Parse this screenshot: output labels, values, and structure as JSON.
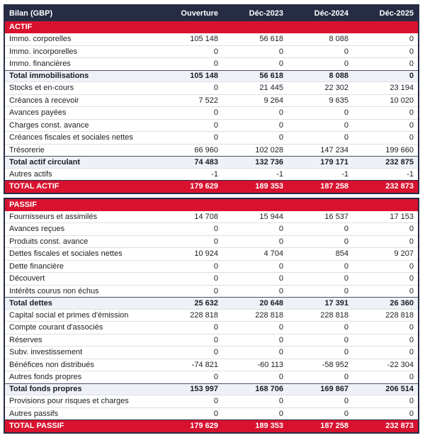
{
  "colors": {
    "navy": "#272c45",
    "red": "#d8112e",
    "subtotal_bg": "#eef1f6",
    "row_border": "#dcdfe4",
    "text": "#1c1d22"
  },
  "table": {
    "header": {
      "label": "Bilan (GBP)",
      "columns": [
        "Ouverture",
        "Déc-2023",
        "Déc-2024",
        "Déc-2025"
      ]
    },
    "sections": [
      {
        "name": "actif",
        "rows": [
          {
            "type": "section",
            "label": "ACTIF",
            "values": [
              "",
              "",
              "",
              ""
            ]
          },
          {
            "type": "data",
            "label": "Immo. corporelles",
            "values": [
              "105 148",
              "56 618",
              "8 088",
              "0"
            ]
          },
          {
            "type": "data",
            "label": "Immo. incorporelles",
            "values": [
              "0",
              "0",
              "0",
              "0"
            ]
          },
          {
            "type": "data",
            "label": "Immo. financières",
            "values": [
              "0",
              "0",
              "0",
              "0"
            ]
          },
          {
            "type": "subtotal",
            "label": "Total immobilisations",
            "values": [
              "105 148",
              "56 618",
              "8 088",
              "0"
            ]
          },
          {
            "type": "data",
            "label": "Stocks et en-cours",
            "values": [
              "0",
              "21 445",
              "22 302",
              "23 194"
            ]
          },
          {
            "type": "data",
            "label": "Créances à recevoir",
            "values": [
              "7 522",
              "9 264",
              "9 635",
              "10 020"
            ]
          },
          {
            "type": "data",
            "label": "Avances payées",
            "values": [
              "0",
              "0",
              "0",
              "0"
            ]
          },
          {
            "type": "data",
            "label": "Charges const. avance",
            "values": [
              "0",
              "0",
              "0",
              "0"
            ]
          },
          {
            "type": "data",
            "label": "Créances fiscales et sociales nettes",
            "values": [
              "0",
              "0",
              "0",
              "0"
            ]
          },
          {
            "type": "data",
            "label": "Trésorerie",
            "values": [
              "66 960",
              "102 028",
              "147 234",
              "199 660"
            ]
          },
          {
            "type": "subtotal",
            "label": "Total actif circulant",
            "values": [
              "74 483",
              "132 736",
              "179 171",
              "232 875"
            ]
          },
          {
            "type": "data",
            "label": "Autres actifs",
            "values": [
              "-1",
              "-1",
              "-1",
              "-1"
            ]
          },
          {
            "type": "total",
            "label": "TOTAL ACTIF",
            "values": [
              "179 629",
              "189 353",
              "187 258",
              "232 873"
            ]
          }
        ]
      },
      {
        "name": "passif",
        "rows": [
          {
            "type": "section",
            "label": "PASSIF",
            "values": [
              "",
              "",
              "",
              ""
            ]
          },
          {
            "type": "data",
            "label": "Fournisseurs et assimilés",
            "values": [
              "14 708",
              "15 944",
              "16 537",
              "17 153"
            ]
          },
          {
            "type": "data",
            "label": "Avances reçues",
            "values": [
              "0",
              "0",
              "0",
              "0"
            ]
          },
          {
            "type": "data",
            "label": "Produits const. avance",
            "values": [
              "0",
              "0",
              "0",
              "0"
            ]
          },
          {
            "type": "data",
            "label": "Dettes fiscales et sociales nettes",
            "values": [
              "10 924",
              "4 704",
              "854",
              "9 207"
            ]
          },
          {
            "type": "data",
            "label": "Dette financière",
            "values": [
              "0",
              "0",
              "0",
              "0"
            ]
          },
          {
            "type": "data",
            "label": "Découvert",
            "values": [
              "0",
              "0",
              "0",
              "0"
            ]
          },
          {
            "type": "data",
            "label": "Intérêts courus non échus",
            "values": [
              "0",
              "0",
              "0",
              "0"
            ]
          },
          {
            "type": "subtotal",
            "label": "Total dettes",
            "values": [
              "25 632",
              "20 648",
              "17 391",
              "26 360"
            ]
          },
          {
            "type": "data",
            "label": "Capital social et primes d'émission",
            "values": [
              "228 818",
              "228 818",
              "228 818",
              "228 818"
            ]
          },
          {
            "type": "data",
            "label": "Compte courant d'associés",
            "values": [
              "0",
              "0",
              "0",
              "0"
            ]
          },
          {
            "type": "data",
            "label": "Réserves",
            "values": [
              "0",
              "0",
              "0",
              "0"
            ]
          },
          {
            "type": "data",
            "label": "Subv. investissement",
            "values": [
              "0",
              "0",
              "0",
              "0"
            ]
          },
          {
            "type": "data",
            "label": "Bénéfices non distribués",
            "values": [
              "-74 821",
              "-60 113",
              "-58 952",
              "-22 304"
            ]
          },
          {
            "type": "data",
            "label": "Autres fonds propres",
            "values": [
              "0",
              "0",
              "0",
              "0"
            ]
          },
          {
            "type": "subtotal",
            "label": "Total fonds propres",
            "values": [
              "153 997",
              "168 706",
              "169 867",
              "206 514"
            ]
          },
          {
            "type": "data",
            "label": "Provisions pour risques et charges",
            "values": [
              "0",
              "0",
              "0",
              "0"
            ]
          },
          {
            "type": "data",
            "label": "Autres passifs",
            "values": [
              "0",
              "0",
              "0",
              "0"
            ]
          },
          {
            "type": "total",
            "label": "TOTAL PASSIF",
            "values": [
              "179 629",
              "189 353",
              "187 258",
              "232 873"
            ]
          }
        ]
      }
    ]
  }
}
